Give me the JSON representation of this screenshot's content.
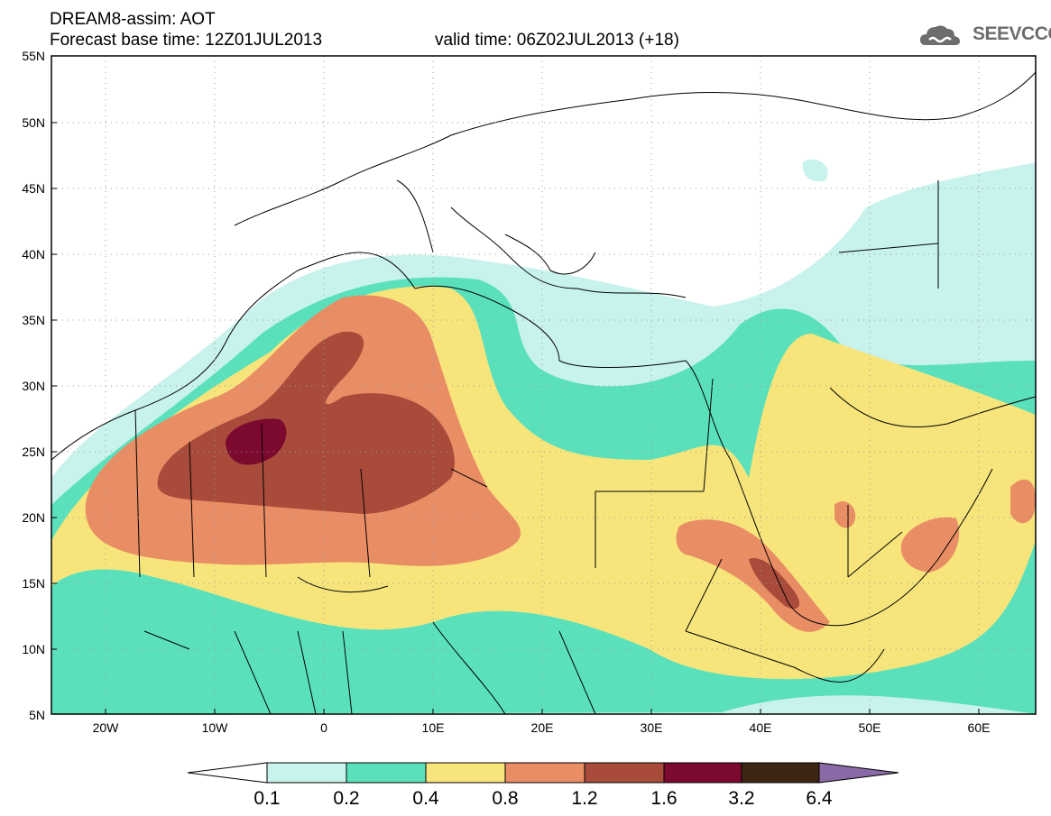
{
  "header": {
    "title_line1": "DREAM8-assim: AOT",
    "title_line2": "Forecast base time: 12Z01JUL2013",
    "valid_time": "valid time: 06Z02JUL2013 (+18)",
    "logo_text": "SEEVCCC",
    "logo_icon": "cloud-icon"
  },
  "map": {
    "projection": "lat-lon",
    "lon_range": [
      -25,
      65
    ],
    "lat_range": [
      5,
      55
    ],
    "lat_ticks": [
      "55N",
      "50N",
      "45N",
      "40N",
      "35N",
      "30N",
      "25N",
      "20N",
      "15N",
      "10N",
      "5N"
    ],
    "lon_ticks": [
      "20W",
      "10W",
      "0",
      "10E",
      "20E",
      "30E",
      "40E",
      "50E",
      "60E"
    ],
    "grid": "dotted"
  },
  "colorbar": {
    "labels": [
      "0.1",
      "0.2",
      "0.4",
      "0.8",
      "1.2",
      "1.6",
      "3.2",
      "6.4"
    ],
    "colors": [
      "#c8f2ec",
      "#5ae1bb",
      "#f7e57c",
      "#e98d65",
      "#a84b3b",
      "#7b0a2e",
      "#3d2613",
      "#8a6aa6"
    ],
    "lower_arrow_color": "#ffffff",
    "upper_arrow_color": "#8a6aa6"
  }
}
